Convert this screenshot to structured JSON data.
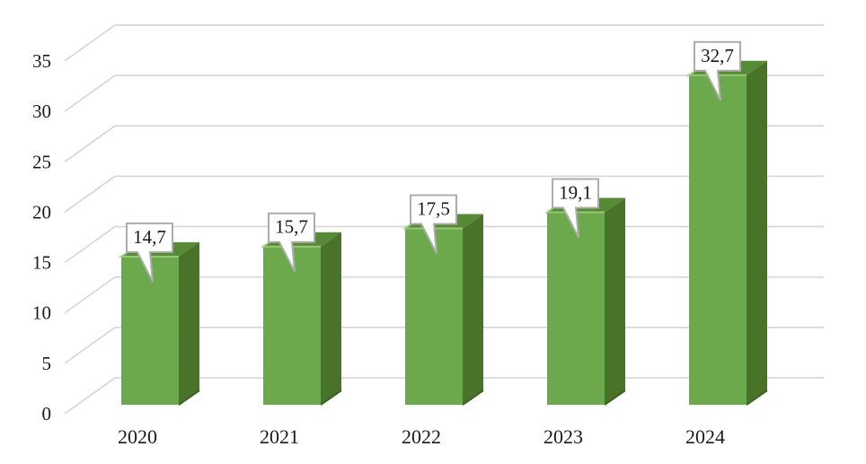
{
  "chart_data": {
    "type": "bar",
    "style": "3d-column",
    "title": "",
    "xlabel": "",
    "ylabel": "",
    "categories": [
      "2020",
      "2021",
      "2022",
      "2023",
      "2024"
    ],
    "values": [
      14.7,
      15.7,
      17.5,
      19.1,
      32.7
    ],
    "data_labels": [
      "14,7",
      "15,7",
      "17,5",
      "19,1",
      "32,7"
    ],
    "y_ticks": [
      0,
      5,
      10,
      15,
      20,
      25,
      30,
      35
    ],
    "y_tick_labels": [
      "0",
      "5",
      "10",
      "15",
      "20",
      "25",
      "30",
      "35"
    ],
    "ylim": [
      0,
      35
    ],
    "grid": true,
    "legend": "none",
    "colors": {
      "bar_front": "#6CA94D",
      "bar_top": "#568A36",
      "bar_side": "#497329",
      "bar_bevel_highlight": "#9DCB7E",
      "bar_bottom_shadow": "#3C6323",
      "gridline": "#D8D8D8",
      "callout_fill": "#FFFFFF",
      "callout_border": "#ACACAC",
      "text": "#1A1A1A",
      "background": "#FFFFFF"
    }
  }
}
